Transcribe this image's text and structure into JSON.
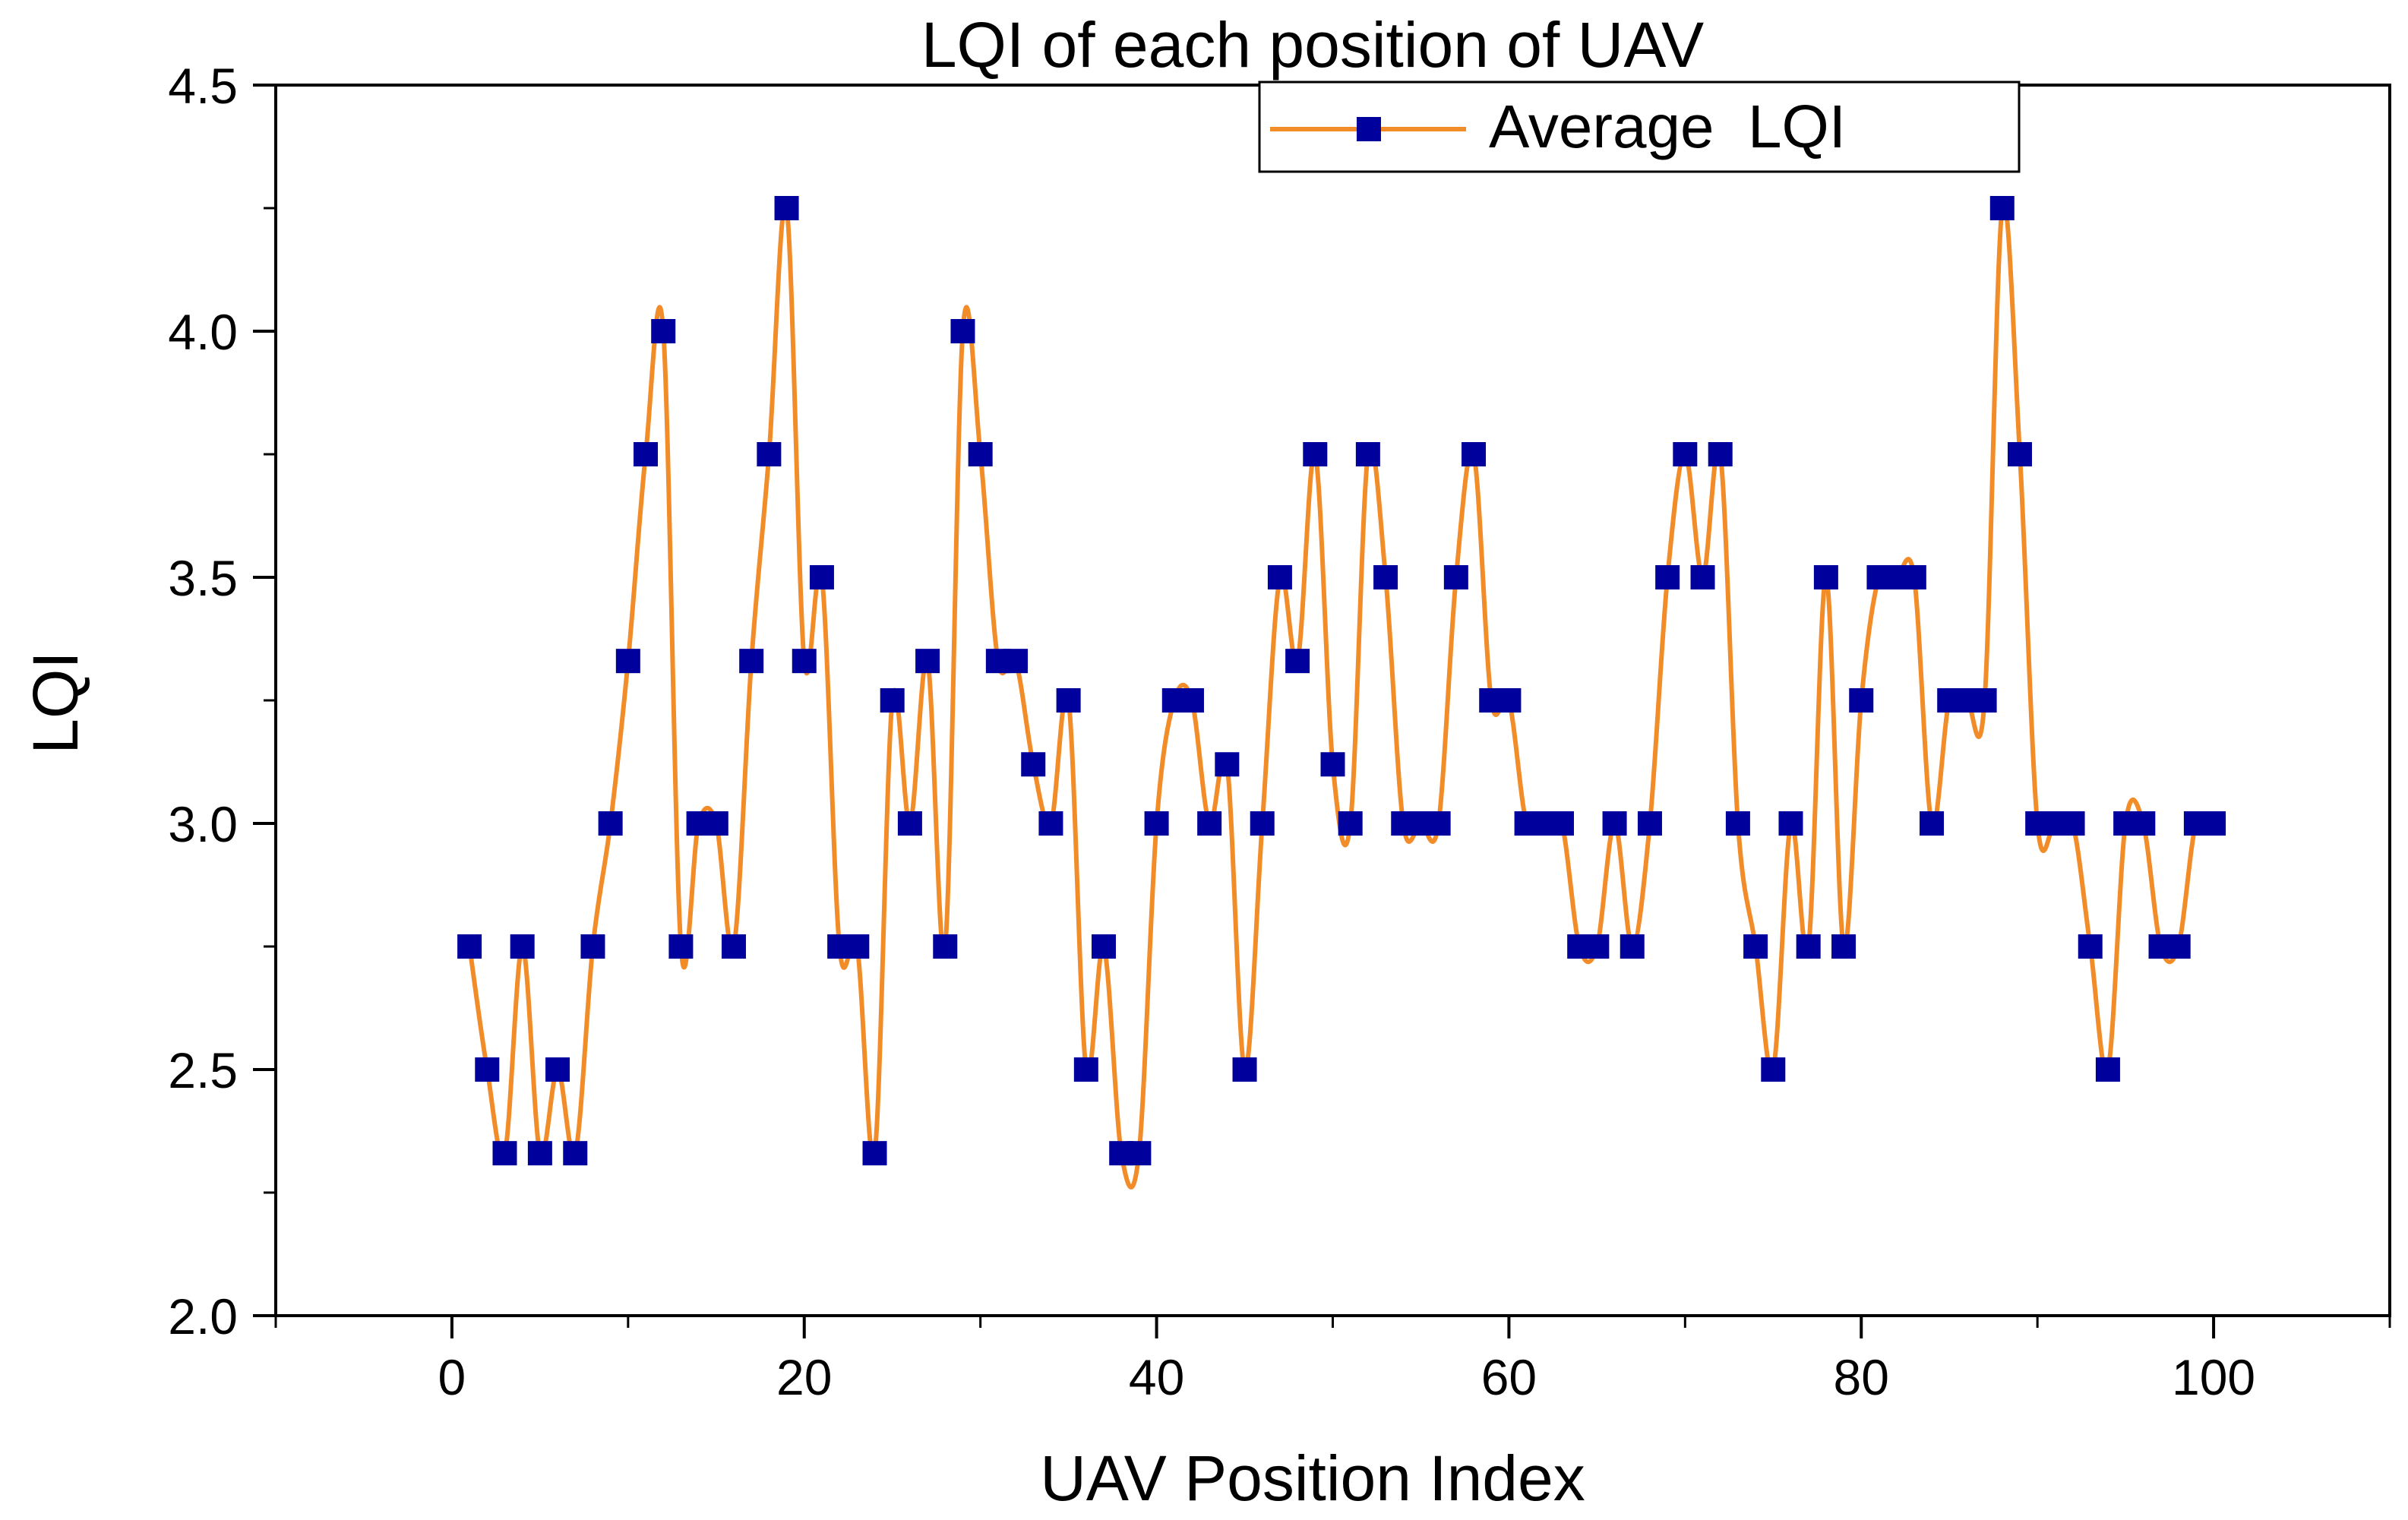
{
  "chart_data": {
    "type": "line",
    "title": "LQI of each position of UAV",
    "xlabel": "UAV Position Index",
    "ylabel": "LQI",
    "xlim": [
      -10,
      110
    ],
    "ylim": [
      2.0,
      4.5
    ],
    "x_ticks": [
      0,
      20,
      40,
      60,
      80,
      100
    ],
    "x_tick_labels": [
      "0",
      "20",
      "40",
      "60",
      "80",
      "100"
    ],
    "y_ticks": [
      2.0,
      2.5,
      3.0,
      3.5,
      4.0,
      4.5
    ],
    "y_tick_labels": [
      "2.0",
      "2.5",
      "3.0",
      "3.5",
      "4.0",
      "4.5"
    ],
    "grid": false,
    "legend_position": "top-right",
    "line_color": "#F28C28",
    "marker_color": "#00009C",
    "marker": "square",
    "series": [
      {
        "name": "Average  LQI",
        "x": [
          1,
          2,
          3,
          4,
          5,
          6,
          7,
          8,
          9,
          10,
          11,
          12,
          13,
          14,
          15,
          16,
          17,
          18,
          19,
          20,
          21,
          22,
          23,
          24,
          25,
          26,
          27,
          28,
          29,
          30,
          31,
          32,
          33,
          34,
          35,
          36,
          37,
          38,
          39,
          40,
          41,
          42,
          43,
          44,
          45,
          46,
          47,
          48,
          49,
          50,
          51,
          52,
          53,
          54,
          55,
          56,
          57,
          58,
          59,
          60,
          61,
          62,
          63,
          64,
          65,
          66,
          67,
          68,
          69,
          70,
          71,
          72,
          73,
          74,
          75,
          76,
          77,
          78,
          79,
          80,
          81,
          82,
          83,
          84,
          85,
          86,
          87,
          88,
          89,
          90,
          91,
          92,
          93,
          94,
          95,
          96,
          97,
          98,
          99,
          100
        ],
        "values": [
          2.75,
          2.5,
          2.33,
          2.75,
          2.33,
          2.5,
          2.33,
          2.75,
          3.0,
          3.33,
          3.75,
          4.0,
          2.75,
          3.0,
          3.0,
          2.75,
          3.33,
          3.75,
          4.25,
          3.33,
          3.5,
          2.75,
          2.75,
          2.33,
          3.25,
          3.0,
          3.33,
          2.75,
          4.0,
          3.75,
          3.33,
          3.33,
          3.12,
          3.0,
          3.25,
          2.5,
          2.75,
          2.33,
          2.33,
          3.0,
          3.25,
          3.25,
          3.0,
          3.12,
          2.5,
          3.0,
          3.5,
          3.33,
          3.75,
          3.12,
          3.0,
          3.75,
          3.5,
          3.0,
          3.0,
          3.0,
          3.5,
          3.75,
          3.25,
          3.25,
          3.0,
          3.0,
          3.0,
          2.75,
          2.75,
          3.0,
          2.75,
          3.0,
          3.5,
          3.75,
          3.5,
          3.75,
          3.0,
          2.75,
          2.5,
          3.0,
          2.75,
          3.5,
          2.75,
          3.25,
          3.5,
          3.5,
          3.5,
          3.0,
          3.25,
          3.25,
          3.25,
          4.25,
          3.75,
          3.0,
          3.0,
          3.0,
          2.75,
          2.5,
          3.0,
          3.0,
          2.75,
          2.75,
          3.0,
          3.0
        ]
      }
    ]
  }
}
